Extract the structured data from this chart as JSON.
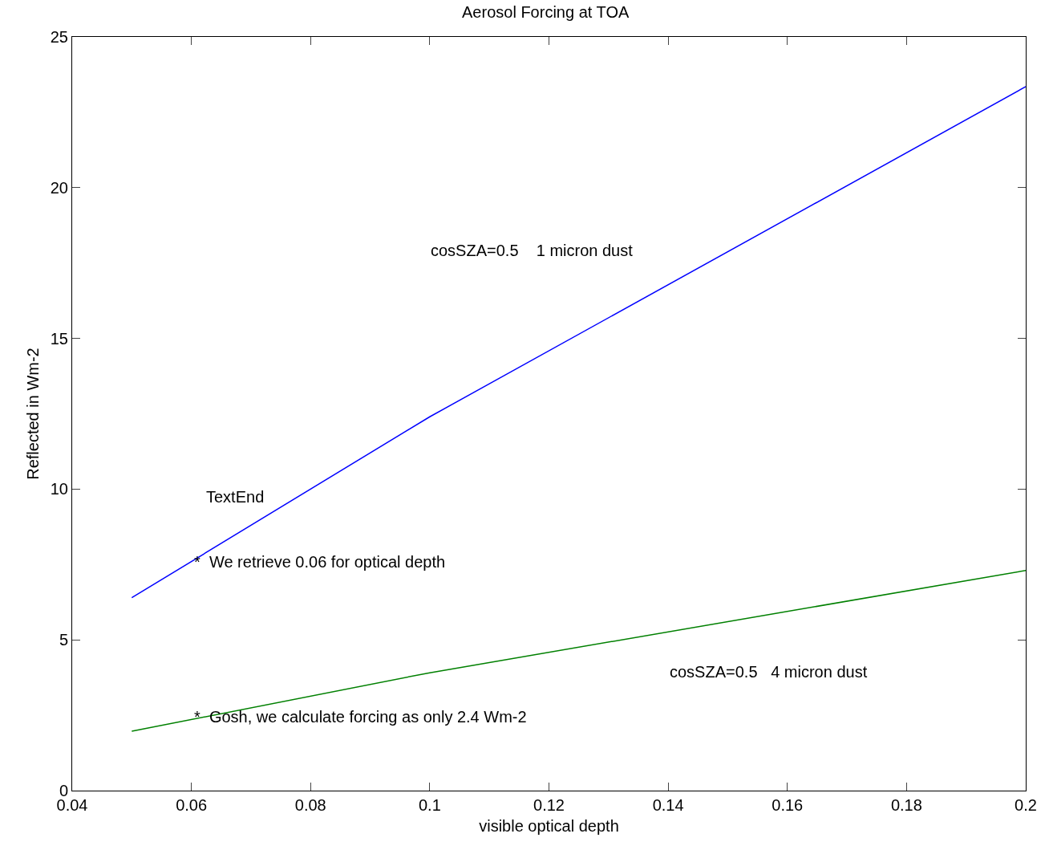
{
  "chart_data": {
    "type": "line",
    "title": "Aerosol Forcing at TOA",
    "xlabel": "visible optical depth",
    "ylabel": "Reflected in Wm-2",
    "x": [
      0.05,
      0.1,
      0.2
    ],
    "series": [
      {
        "color": "#0000ff",
        "values": [
          6.4,
          12.4,
          23.35
        ]
      },
      {
        "color": "#008000",
        "values": [
          1.97,
          3.91,
          7.3
        ]
      }
    ],
    "xlim": [
      0.04,
      0.2
    ],
    "xticks": [
      0.04,
      0.06,
      0.08,
      0.1,
      0.12,
      0.14,
      0.16,
      0.18,
      0.2
    ],
    "ylim": [
      0,
      25
    ],
    "yticks": [
      0,
      5,
      10,
      15,
      20,
      25
    ],
    "grid": false,
    "marker": "none",
    "line_style": "solid",
    "annotations": [
      "cosSZA=0.5    1 micron dust",
      "TextEnd",
      {
        "text": "*  We retrieve 0.06 for optical depth",
        "x": 0.0602,
        "y": 7.6
      },
      "cosSZA=0.5   4 micron dust",
      {
        "text": "*  Gosh, we calculate forcing as only 2.4 Wm-2",
        "x": 0.0602,
        "y": 2.45
      }
    ]
  }
}
